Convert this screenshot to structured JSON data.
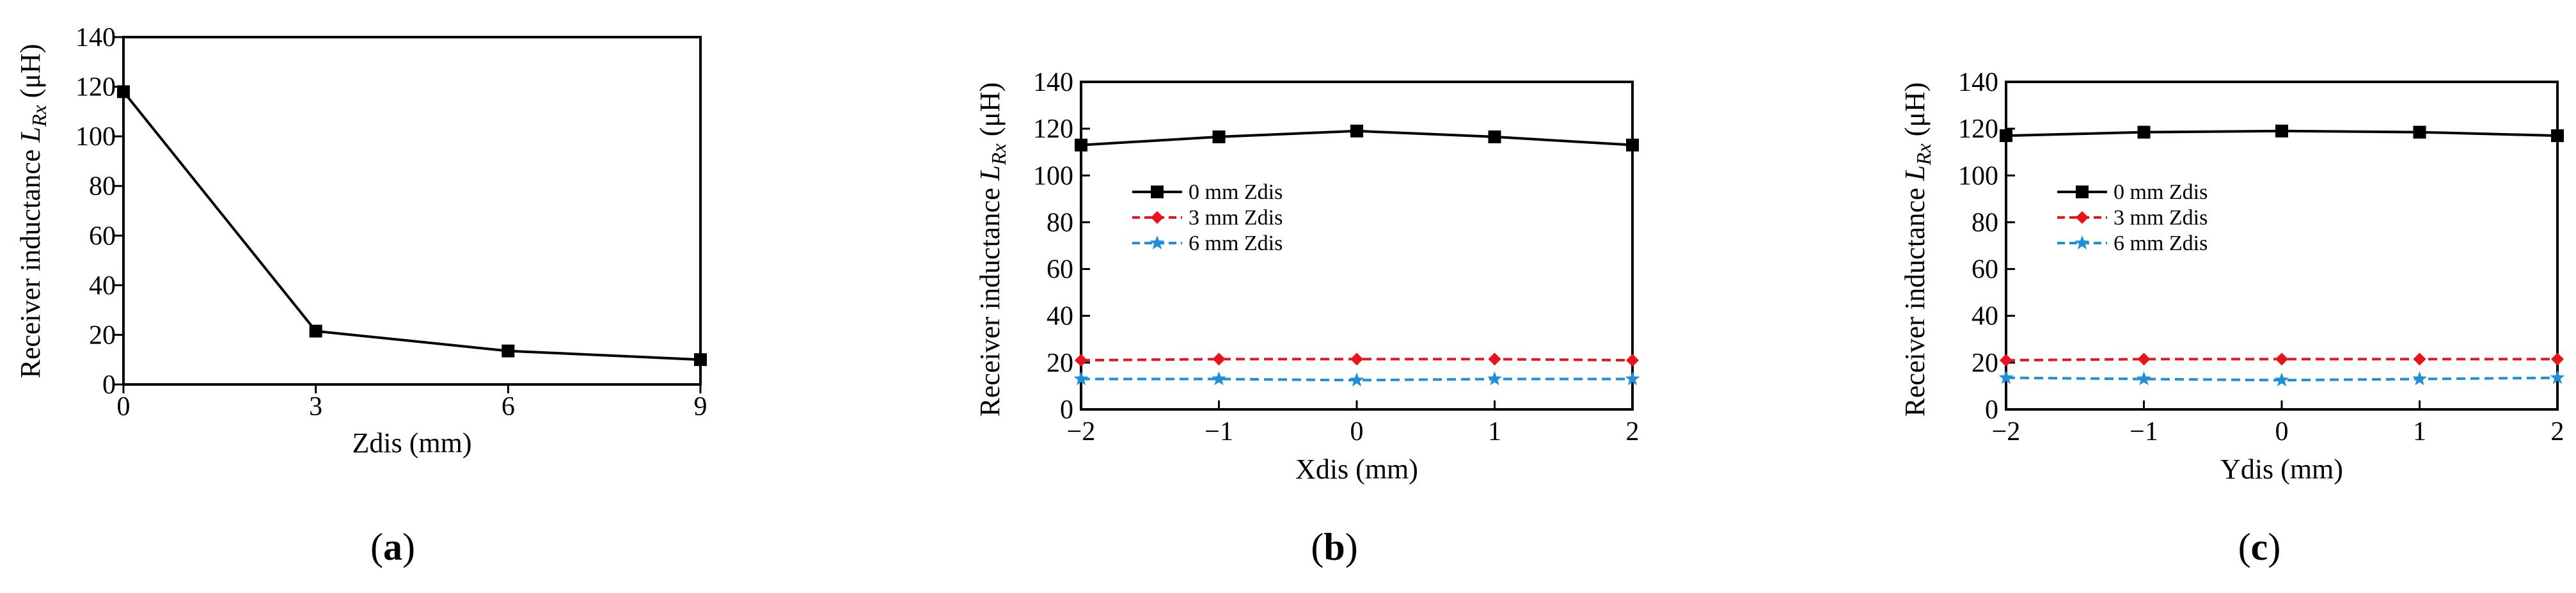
{
  "chart_data": [
    {
      "type": "line",
      "panel": "(a)",
      "caption_letter": "a",
      "xlabel": "Zdis (mm)",
      "ylabel_prefix": "Receiver inductance ",
      "ylabel_symbol": "L",
      "ylabel_subscript": "Rx",
      "ylabel_unit": " (μH)",
      "xlim": [
        0,
        9
      ],
      "ylim": [
        0,
        140
      ],
      "xticks": [
        0,
        3,
        6,
        9
      ],
      "xtick_labels": [
        "0",
        "3",
        "6",
        "9"
      ],
      "yticks": [
        0,
        20,
        40,
        60,
        80,
        100,
        120,
        140
      ],
      "ytick_labels": [
        "0",
        "20",
        "40",
        "60",
        "80",
        "100",
        "120",
        "140"
      ],
      "series": [
        {
          "name": "",
          "color": "#000000",
          "marker": "square",
          "dashed": false,
          "x": [
            0,
            3,
            6,
            9
          ],
          "values": [
            118,
            21.5,
            13.5,
            10
          ]
        }
      ]
    },
    {
      "type": "line",
      "panel": "(b)",
      "caption_letter": "b",
      "xlabel": "Xdis (mm)",
      "ylabel_prefix": "Receiver inductance ",
      "ylabel_symbol": "L",
      "ylabel_subscript": "Rx",
      "ylabel_unit": " (μH)",
      "xlim": [
        -2,
        2
      ],
      "ylim": [
        0,
        140
      ],
      "xticks": [
        -2,
        -1,
        0,
        1,
        2
      ],
      "xtick_labels": [
        "−2",
        "−1",
        "0",
        "1",
        "2"
      ],
      "yticks": [
        0,
        20,
        40,
        60,
        80,
        100,
        120,
        140
      ],
      "ytick_labels": [
        "0",
        "20",
        "40",
        "60",
        "80",
        "100",
        "120",
        "140"
      ],
      "series": [
        {
          "name": "0 mm Zdis",
          "color": "#000000",
          "marker": "square",
          "dashed": false,
          "x": [
            -2,
            -1,
            0,
            1,
            2
          ],
          "values": [
            113,
            116.5,
            119,
            116.5,
            113
          ]
        },
        {
          "name": "3 mm Zdis",
          "color": "#e8141c",
          "marker": "diamond",
          "dashed": true,
          "x": [
            -2,
            -1,
            0,
            1,
            2
          ],
          "values": [
            21,
            21.5,
            21.5,
            21.5,
            21
          ]
        },
        {
          "name": "6 mm Zdis",
          "color": "#1e8fd8",
          "marker": "star",
          "dashed": true,
          "x": [
            -2,
            -1,
            0,
            1,
            2
          ],
          "values": [
            13,
            13,
            12.5,
            13,
            13
          ]
        }
      ]
    },
    {
      "type": "line",
      "panel": "(c)",
      "caption_letter": "c",
      "xlabel": "Ydis (mm)",
      "ylabel_prefix": "Receiver inductance ",
      "ylabel_symbol": "L",
      "ylabel_subscript": "Rx",
      "ylabel_unit": " (μH)",
      "xlim": [
        -2,
        2
      ],
      "ylim": [
        0,
        140
      ],
      "xticks": [
        -2,
        -1,
        0,
        1,
        2
      ],
      "xtick_labels": [
        "−2",
        "−1",
        "0",
        "1",
        "2"
      ],
      "yticks": [
        0,
        20,
        40,
        60,
        80,
        100,
        120,
        140
      ],
      "ytick_labels": [
        "0",
        "20",
        "40",
        "60",
        "80",
        "100",
        "120",
        "140"
      ],
      "series": [
        {
          "name": "0 mm Zdis",
          "color": "#000000",
          "marker": "square",
          "dashed": false,
          "x": [
            -2,
            -1,
            0,
            1,
            2
          ],
          "values": [
            117,
            118.5,
            119,
            118.5,
            117
          ]
        },
        {
          "name": "3 mm Zdis",
          "color": "#e8141c",
          "marker": "diamond",
          "dashed": true,
          "x": [
            -2,
            -1,
            0,
            1,
            2
          ],
          "values": [
            21,
            21.5,
            21.5,
            21.5,
            21.5
          ]
        },
        {
          "name": "6 mm Zdis",
          "color": "#1e8fd8",
          "marker": "star",
          "dashed": true,
          "x": [
            -2,
            -1,
            0,
            1,
            2
          ],
          "values": [
            13.5,
            13,
            12.5,
            13,
            13.5
          ]
        }
      ]
    }
  ]
}
